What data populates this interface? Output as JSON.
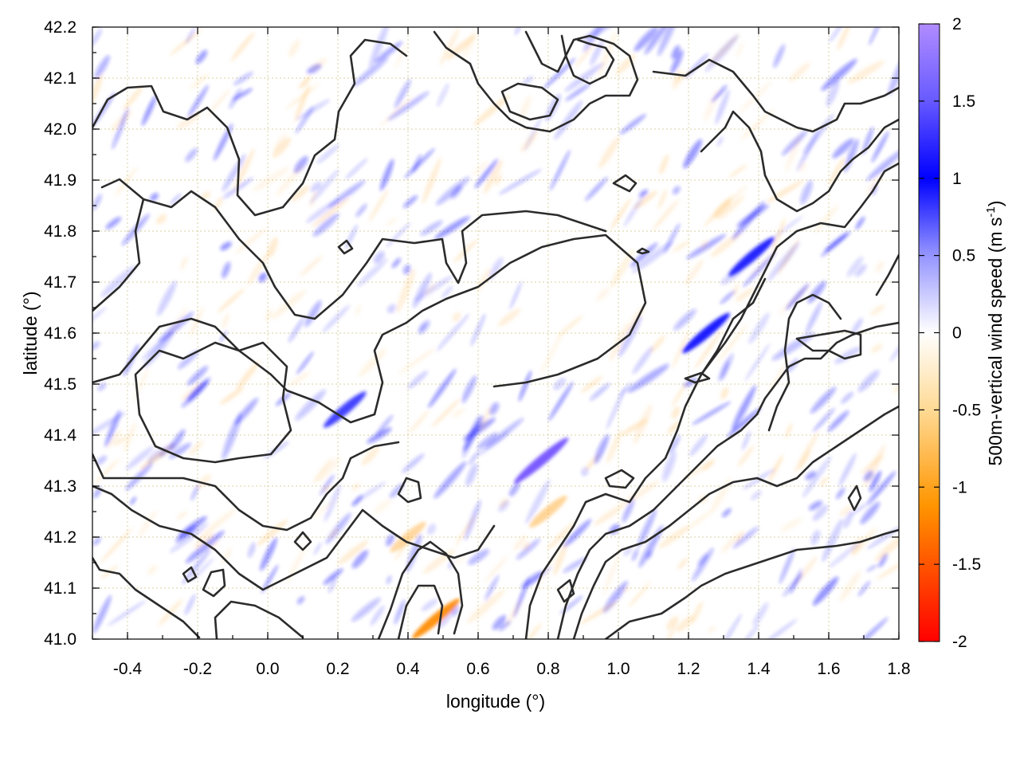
{
  "chart_data": {
    "type": "heatmap",
    "title": "",
    "xlabel": "longitude (°)",
    "ylabel": "latitude (°)",
    "xlim": [
      -0.5,
      1.8
    ],
    "ylim": [
      41.0,
      42.2
    ],
    "x_ticks": [
      "-0.4",
      "-0.2",
      "0.0",
      "0.2",
      "0.4",
      "0.6",
      "0.8",
      "1.0",
      "1.2",
      "1.4",
      "1.6",
      "1.8"
    ],
    "y_ticks": [
      "41.0",
      "41.1",
      "41.2",
      "41.3",
      "41.4",
      "41.5",
      "41.6",
      "41.7",
      "41.8",
      "41.9",
      "42.0",
      "42.1",
      "42.2"
    ],
    "grid": true,
    "colorbar": {
      "label": "500m-vertical wind speed (m s",
      "label_sup": "-1",
      "label_close": ")",
      "range": [
        -2,
        2
      ],
      "ticks": [
        "2",
        "1.5",
        "1",
        "0.5",
        "0",
        "-0.5",
        "-1",
        "-1.5",
        "-2"
      ],
      "colors": [
        "#ff0000",
        "#ff8c00",
        "#ffc04d",
        "#ffffff",
        "#5a5aff",
        "#0000ff",
        "#aa88ff"
      ]
    },
    "overlay": "terrain elevation contours (black)",
    "features": [
      {
        "lon": 0.48,
        "lat": 41.04,
        "value": -1.2
      },
      {
        "lon": 0.78,
        "lat": 41.35,
        "value": 1.6
      },
      {
        "lon": 1.25,
        "lat": 41.6,
        "value": 1.2
      },
      {
        "lon": 1.38,
        "lat": 41.75,
        "value": 1.1
      },
      {
        "lon": 0.22,
        "lat": 41.45,
        "value": 0.9
      },
      {
        "lon": 0.8,
        "lat": 41.25,
        "value": -0.6
      },
      {
        "lon": 0.4,
        "lat": 41.2,
        "value": -0.5
      }
    ]
  }
}
